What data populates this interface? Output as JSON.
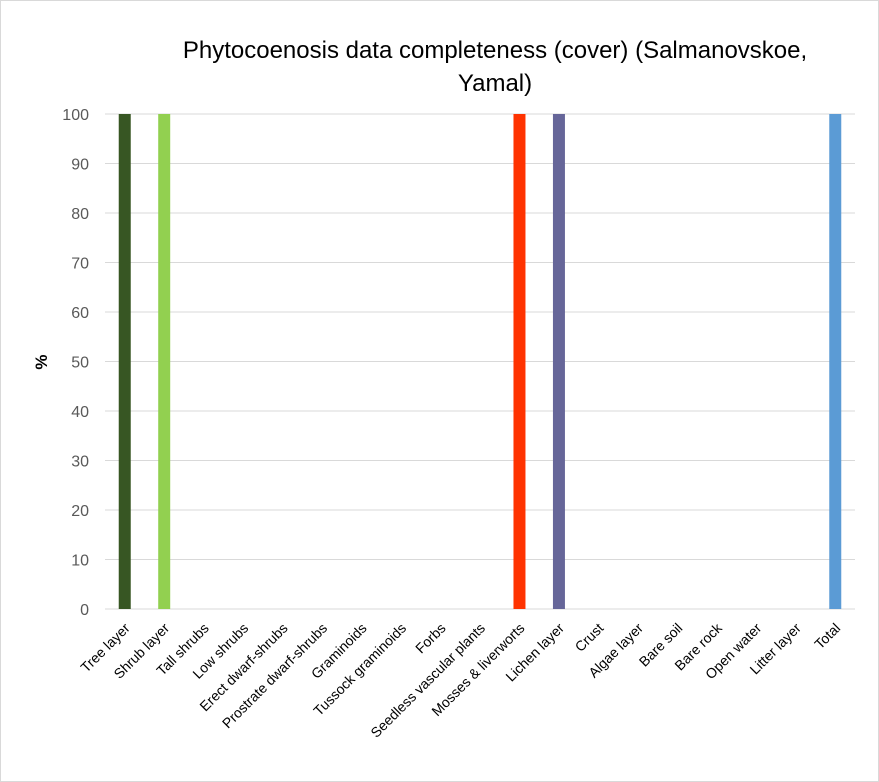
{
  "chart_data": {
    "type": "bar",
    "title": "Phytocoenosis  data completeness (cover) (Salmanovskoe, Yamal)",
    "ylabel": "%",
    "xlabel": "",
    "ylim": [
      0,
      100
    ],
    "yticks": [
      0,
      10,
      20,
      30,
      40,
      50,
      60,
      70,
      80,
      90,
      100
    ],
    "grid": true,
    "legend": "none",
    "categories": [
      "Tree layer",
      "Shrub layer",
      "Tall shrubs",
      "Low shrubs",
      "Erect dwarf-shrubs",
      "Prostrate dwarf-shrubs",
      "Graminoids",
      "Tussock graminoids",
      "Forbs",
      "Seedless vascular plants",
      "Mosses & liverworts",
      "Lichen layer",
      "Crust",
      "Algae layer",
      "Bare soil",
      "Bare rock",
      "Open water",
      "Litter layer",
      "Total"
    ],
    "values": [
      100,
      100,
      0,
      0,
      0,
      0,
      0,
      0,
      0,
      0,
      100,
      100,
      0,
      0,
      0,
      0,
      0,
      0,
      100
    ],
    "colors": [
      "#375623",
      "#92d050",
      "#a5a5a5",
      "#a5a5a5",
      "#a5a5a5",
      "#a5a5a5",
      "#a5a5a5",
      "#a5a5a5",
      "#a5a5a5",
      "#a5a5a5",
      "#ff3300",
      "#666699",
      "#a5a5a5",
      "#a5a5a5",
      "#a5a5a5",
      "#a5a5a5",
      "#a5a5a5",
      "#a5a5a5",
      "#5b9bd5"
    ]
  }
}
